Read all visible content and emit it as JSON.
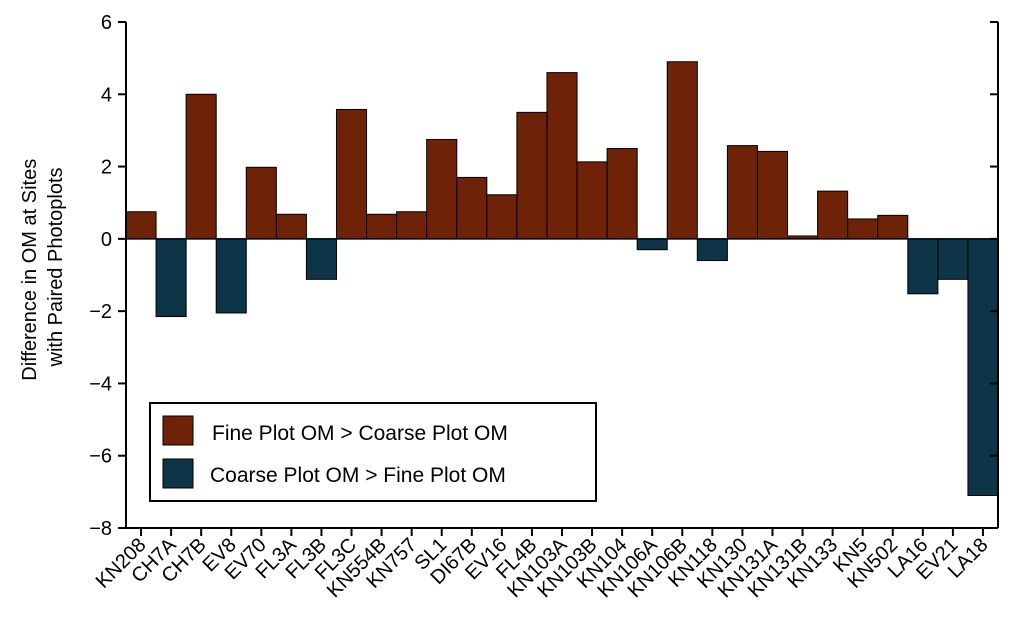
{
  "chart_data": {
    "type": "bar",
    "categories": [
      "KN208",
      "CH7A",
      "CH7B",
      "EV8",
      "EV70",
      "FL3A",
      "FL3B",
      "FL3C",
      "KN554B",
      "KN757",
      "SL1",
      "DI67B",
      "EV16",
      "FL4B",
      "KN103A",
      "KN103B",
      "KN104",
      "KN106A",
      "KN106B",
      "KN118",
      "KN130",
      "KN131A",
      "KN131B",
      "KN133",
      "KN5",
      "KN502",
      "LA16",
      "EV21",
      "LA18"
    ],
    "values": [
      0.75,
      -2.15,
      4.0,
      -2.05,
      1.98,
      0.68,
      -1.12,
      3.58,
      0.68,
      0.75,
      2.75,
      1.7,
      1.22,
      3.5,
      4.6,
      2.13,
      2.5,
      -0.3,
      4.9,
      -0.6,
      2.58,
      2.42,
      0.08,
      1.32,
      0.55,
      0.65,
      -1.52,
      -1.12,
      -7.1
    ],
    "ylabel_lines": [
      "Difference in OM at Sites",
      "with Paired Photoplots"
    ],
    "xlabel": "",
    "ylim": [
      -8,
      6
    ],
    "yticks": [
      -8,
      -6,
      -4,
      -2,
      0,
      2,
      4,
      6
    ],
    "ytick_labels": [
      "−8",
      "−6",
      "−4",
      "−2",
      "0",
      "2",
      "4",
      "6"
    ],
    "grid": false,
    "legend_position": "lower-left",
    "legend": [
      {
        "label": "Fine Plot OM > Coarse Plot OM",
        "color": "#6e2208"
      },
      {
        "label": "Coarse Plot OM > Fine Plot OM",
        "color": "#0d3447"
      }
    ],
    "colors": {
      "positive": "#6e2208",
      "negative": "#0d3447",
      "edge": "#000000"
    }
  }
}
